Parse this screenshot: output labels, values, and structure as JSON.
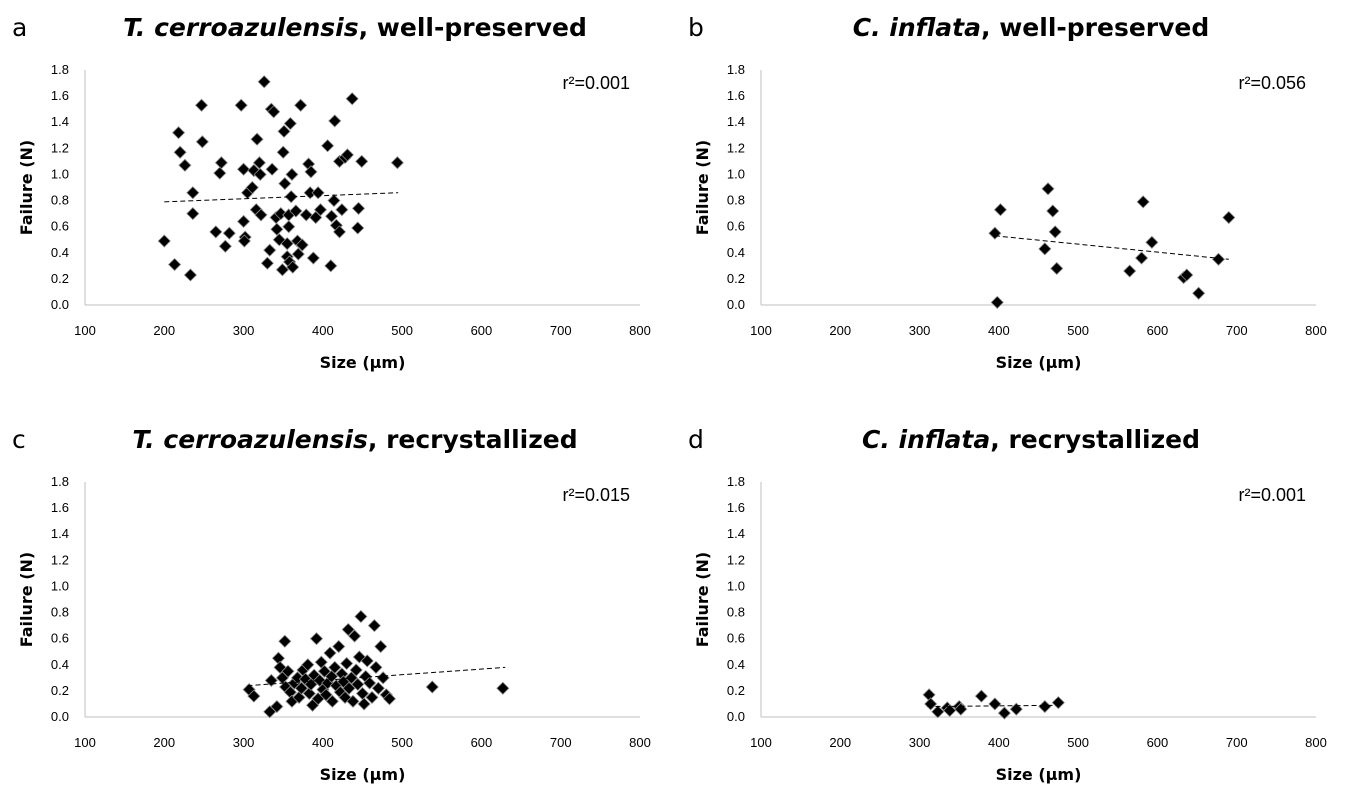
{
  "chart_data": [
    {
      "type": "scatter",
      "panel_letter": "a",
      "title_species": "T. cerroazulensis",
      "title_rest": ", well-preserved",
      "xlabel": "Size (µm)",
      "ylabel": "Failure (N)",
      "xlim": [
        100,
        800
      ],
      "ylim": [
        0,
        1.8
      ],
      "xticks": [
        100,
        200,
        300,
        400,
        500,
        600,
        700,
        800
      ],
      "yticks": [
        "0.0",
        "0.2",
        "0.4",
        "0.6",
        "0.8",
        "1.0",
        "1.2",
        "1.4",
        "1.6",
        "1.8"
      ],
      "r2_label": "r²=0.001",
      "trendline": {
        "x": [
          200,
          495
        ],
        "y": [
          0.79,
          0.86
        ]
      },
      "grid": false,
      "points": [
        [
          200,
          0.49
        ],
        [
          213,
          0.31
        ],
        [
          218,
          1.32
        ],
        [
          220,
          1.17
        ],
        [
          226,
          1.07
        ],
        [
          233,
          0.23
        ],
        [
          236,
          0.86
        ],
        [
          236,
          0.7
        ],
        [
          247,
          1.53
        ],
        [
          248,
          1.25
        ],
        [
          265,
          0.56
        ],
        [
          270,
          1.01
        ],
        [
          272,
          1.09
        ],
        [
          277,
          0.45
        ],
        [
          282,
          0.55
        ],
        [
          297,
          1.53
        ],
        [
          300,
          1.04
        ],
        [
          300,
          0.64
        ],
        [
          302,
          0.52
        ],
        [
          301,
          0.49
        ],
        [
          305,
          0.86
        ],
        [
          311,
          0.9
        ],
        [
          313,
          1.03
        ],
        [
          316,
          0.73
        ],
        [
          317,
          1.27
        ],
        [
          320,
          1.09
        ],
        [
          322,
          0.69
        ],
        [
          321,
          1.0
        ],
        [
          326,
          1.71
        ],
        [
          330,
          0.32
        ],
        [
          333,
          0.42
        ],
        [
          335,
          1.5
        ],
        [
          336,
          1.04
        ],
        [
          338,
          1.48
        ],
        [
          341,
          0.67
        ],
        [
          342,
          0.58
        ],
        [
          345,
          0.5
        ],
        [
          347,
          0.7
        ],
        [
          349,
          0.27
        ],
        [
          350,
          1.17
        ],
        [
          351,
          1.33
        ],
        [
          352,
          0.93
        ],
        [
          355,
          0.37
        ],
        [
          355,
          0.47
        ],
        [
          357,
          0.6
        ],
        [
          358,
          0.33
        ],
        [
          357,
          0.69
        ],
        [
          359,
          1.39
        ],
        [
          360,
          0.83
        ],
        [
          361,
          1.0
        ],
        [
          362,
          0.29
        ],
        [
          366,
          0.72
        ],
        [
          368,
          0.49
        ],
        [
          369,
          0.39
        ],
        [
          372,
          1.53
        ],
        [
          374,
          0.46
        ],
        [
          379,
          0.69
        ],
        [
          382,
          1.08
        ],
        [
          384,
          0.86
        ],
        [
          385,
          1.02
        ],
        [
          388,
          0.36
        ],
        [
          391,
          0.67
        ],
        [
          394,
          0.86
        ],
        [
          397,
          0.73
        ],
        [
          406,
          1.22
        ],
        [
          410,
          0.3
        ],
        [
          411,
          0.68
        ],
        [
          414,
          0.8
        ],
        [
          415,
          1.41
        ],
        [
          417,
          0.61
        ],
        [
          421,
          0.56
        ],
        [
          421,
          1.1
        ],
        [
          424,
          0.73
        ],
        [
          428,
          1.13
        ],
        [
          431,
          1.15
        ],
        [
          437,
          1.58
        ],
        [
          444,
          0.59
        ],
        [
          445,
          0.74
        ],
        [
          449,
          1.1
        ],
        [
          494,
          1.09
        ]
      ]
    },
    {
      "type": "scatter",
      "panel_letter": "b",
      "title_species": "C. inflata",
      "title_rest": ", well-preserved",
      "xlabel": "Size (µm)",
      "ylabel": "Failure (N)",
      "xlim": [
        100,
        800
      ],
      "ylim": [
        0,
        1.8
      ],
      "xticks": [
        100,
        200,
        300,
        400,
        500,
        600,
        700,
        800
      ],
      "yticks": [
        "0.0",
        "0.2",
        "0.4",
        "0.6",
        "0.8",
        "1.0",
        "1.2",
        "1.4",
        "1.6",
        "1.8"
      ],
      "r2_label": "r²=0.056",
      "trendline": {
        "x": [
          395,
          690
        ],
        "y": [
          0.53,
          0.35
        ]
      },
      "grid": false,
      "points": [
        [
          395,
          0.55
        ],
        [
          398,
          0.02
        ],
        [
          402,
          0.73
        ],
        [
          458,
          0.43
        ],
        [
          462,
          0.89
        ],
        [
          468,
          0.72
        ],
        [
          471,
          0.56
        ],
        [
          473,
          0.28
        ],
        [
          565,
          0.26
        ],
        [
          580,
          0.36
        ],
        [
          582,
          0.79
        ],
        [
          593,
          0.48
        ],
        [
          633,
          0.21
        ],
        [
          637,
          0.23
        ],
        [
          652,
          0.09
        ],
        [
          677,
          0.35
        ],
        [
          690,
          0.67
        ]
      ]
    },
    {
      "type": "scatter",
      "panel_letter": "c",
      "title_species": "T. cerroazulensis",
      "title_rest": ", recrystallized",
      "xlabel": "Size (µm)",
      "ylabel": "Failure (N)",
      "xlim": [
        100,
        800
      ],
      "ylim": [
        0,
        1.8
      ],
      "xticks": [
        100,
        200,
        300,
        400,
        500,
        600,
        700,
        800
      ],
      "yticks": [
        "0.0",
        "0.2",
        "0.4",
        "0.6",
        "0.8",
        "1.0",
        "1.2",
        "1.4",
        "1.6",
        "1.8"
      ],
      "r2_label": "r²=0.015",
      "trendline": {
        "x": [
          305,
          630
        ],
        "y": [
          0.24,
          0.38
        ]
      },
      "grid": false,
      "points": [
        [
          307,
          0.21
        ],
        [
          313,
          0.16
        ],
        [
          333,
          0.04
        ],
        [
          335,
          0.28
        ],
        [
          342,
          0.08
        ],
        [
          344,
          0.45
        ],
        [
          346,
          0.38
        ],
        [
          349,
          0.3
        ],
        [
          352,
          0.58
        ],
        [
          353,
          0.23
        ],
        [
          356,
          0.35
        ],
        [
          359,
          0.19
        ],
        [
          361,
          0.12
        ],
        [
          364,
          0.26
        ],
        [
          368,
          0.3
        ],
        [
          370,
          0.15
        ],
        [
          373,
          0.22
        ],
        [
          375,
          0.36
        ],
        [
          378,
          0.29
        ],
        [
          381,
          0.4
        ],
        [
          383,
          0.18
        ],
        [
          385,
          0.25
        ],
        [
          387,
          0.09
        ],
        [
          389,
          0.32
        ],
        [
          392,
          0.6
        ],
        [
          394,
          0.14
        ],
        [
          396,
          0.28
        ],
        [
          398,
          0.42
        ],
        [
          400,
          0.21
        ],
        [
          402,
          0.35
        ],
        [
          404,
          0.17
        ],
        [
          406,
          0.26
        ],
        [
          409,
          0.49
        ],
        [
          411,
          0.31
        ],
        [
          412,
          0.12
        ],
        [
          415,
          0.38
        ],
        [
          417,
          0.24
        ],
        [
          420,
          0.54
        ],
        [
          422,
          0.19
        ],
        [
          424,
          0.33
        ],
        [
          426,
          0.27
        ],
        [
          428,
          0.15
        ],
        [
          430,
          0.41
        ],
        [
          432,
          0.67
        ],
        [
          433,
          0.22
        ],
        [
          436,
          0.3
        ],
        [
          438,
          0.12
        ],
        [
          440,
          0.62
        ],
        [
          442,
          0.36
        ],
        [
          444,
          0.25
        ],
        [
          446,
          0.46
        ],
        [
          448,
          0.77
        ],
        [
          450,
          0.18
        ],
        [
          452,
          0.1
        ],
        [
          454,
          0.31
        ],
        [
          456,
          0.43
        ],
        [
          459,
          0.26
        ],
        [
          462,
          0.15
        ],
        [
          465,
          0.7
        ],
        [
          467,
          0.38
        ],
        [
          470,
          0.22
        ],
        [
          473,
          0.54
        ],
        [
          476,
          0.3
        ],
        [
          480,
          0.17
        ],
        [
          484,
          0.14
        ],
        [
          538,
          0.23
        ],
        [
          627,
          0.22
        ]
      ]
    },
    {
      "type": "scatter",
      "panel_letter": "d",
      "title_species": "C. inflata",
      "title_rest": ", recrystallized",
      "xlabel": "Size (µm)",
      "ylabel": "Failure (N)",
      "xlim": [
        100,
        800
      ],
      "ylim": [
        0,
        1.8
      ],
      "xticks": [
        100,
        200,
        300,
        400,
        500,
        600,
        700,
        800
      ],
      "yticks": [
        "0.0",
        "0.2",
        "0.4",
        "0.6",
        "0.8",
        "1.0",
        "1.2",
        "1.4",
        "1.6",
        "1.8"
      ],
      "r2_label": "r²=0.001",
      "trendline": {
        "x": [
          310,
          480
        ],
        "y": [
          0.08,
          0.09
        ]
      },
      "grid": false,
      "points": [
        [
          312,
          0.17
        ],
        [
          314,
          0.1
        ],
        [
          323,
          0.04
        ],
        [
          335,
          0.07
        ],
        [
          338,
          0.05
        ],
        [
          350,
          0.08
        ],
        [
          352,
          0.06
        ],
        [
          378,
          0.16
        ],
        [
          395,
          0.1
        ],
        [
          407,
          0.03
        ],
        [
          422,
          0.06
        ],
        [
          458,
          0.08
        ],
        [
          475,
          0.11
        ]
      ]
    }
  ]
}
